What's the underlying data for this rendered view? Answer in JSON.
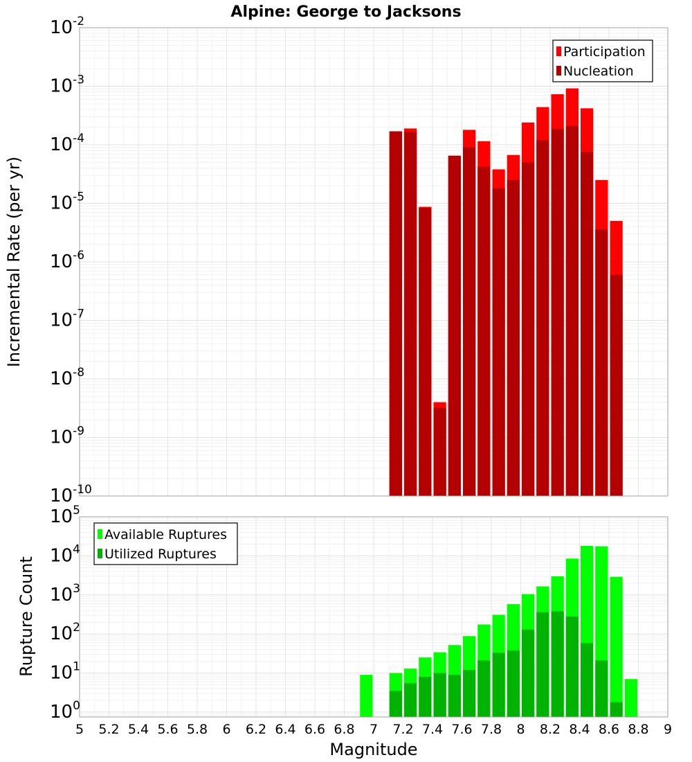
{
  "chart_data": [
    {
      "type": "bar",
      "title": "Alpine: George to Jacksons",
      "xlabel": "",
      "ylabel": "Incremental Rate (per yr)",
      "y_scale": "log",
      "ylim": [
        1e-10,
        0.01
      ],
      "y_ticks": [
        {
          "base": "10",
          "exp": "-10"
        },
        {
          "base": "10",
          "exp": "-9"
        },
        {
          "base": "10",
          "exp": "-8"
        },
        {
          "base": "10",
          "exp": "-7"
        },
        {
          "base": "10",
          "exp": "-6"
        },
        {
          "base": "10",
          "exp": "-5"
        },
        {
          "base": "10",
          "exp": "-4"
        },
        {
          "base": "10",
          "exp": "-3"
        },
        {
          "base": "10",
          "exp": "-2"
        }
      ],
      "xlim": [
        5,
        9
      ],
      "grid": true,
      "legend_position": "top-right",
      "series": [
        {
          "name": "Participation",
          "color": "#ff0000",
          "x": [
            7.15,
            7.25,
            7.35,
            7.45,
            7.55,
            7.65,
            7.75,
            7.85,
            7.95,
            8.05,
            8.15,
            8.25,
            8.35,
            8.45,
            8.55,
            8.65
          ],
          "values": [
            0.00017,
            0.00019,
            8.7e-06,
            4e-09,
            6.5e-05,
            0.00018,
            0.000115,
            3.8e-05,
            6.7e-05,
            0.00024,
            0.00044,
            0.00073,
            0.00092,
            0.00042,
            2.5e-05,
            5e-06
          ]
        },
        {
          "name": "Nucleation",
          "color": "#b30000",
          "x": [
            7.15,
            7.25,
            7.35,
            7.45,
            7.55,
            7.65,
            7.75,
            7.85,
            7.95,
            8.05,
            8.15,
            8.25,
            8.35,
            8.45,
            8.55,
            8.65
          ],
          "values": [
            0.00017,
            0.000165,
            8.3e-06,
            3.2e-09,
            6.5e-05,
            9e-05,
            4.2e-05,
            1.8e-05,
            2.5e-05,
            5e-05,
            0.00012,
            0.000185,
            0.00021,
            7.6e-05,
            3.6e-06,
            6e-07
          ]
        }
      ]
    },
    {
      "type": "bar",
      "title": "",
      "xlabel": "Magnitude",
      "ylabel": "Rupture Count",
      "y_scale": "log",
      "ylim": [
        0.75,
        100000
      ],
      "y_ticks": [
        {
          "base": "10",
          "exp": "0"
        },
        {
          "base": "10",
          "exp": "1"
        },
        {
          "base": "10",
          "exp": "2"
        },
        {
          "base": "10",
          "exp": "3"
        },
        {
          "base": "10",
          "exp": "4"
        },
        {
          "base": "10",
          "exp": "5"
        }
      ],
      "xlim": [
        5,
        9
      ],
      "x_ticks": [
        "5",
        "5.2",
        "5.4",
        "5.6",
        "5.8",
        "6",
        "6.2",
        "6.4",
        "6.6",
        "6.8",
        "7",
        "7.2",
        "7.4",
        "7.6",
        "7.8",
        "8",
        "8.2",
        "8.4",
        "8.6",
        "8.8",
        "9"
      ],
      "grid": true,
      "legend_position": "top-left",
      "series": [
        {
          "name": "Available Ruptures",
          "color": "#00ff00",
          "x": [
            6.95,
            7.15,
            7.25,
            7.35,
            7.45,
            7.55,
            7.65,
            7.75,
            7.85,
            7.95,
            8.05,
            8.15,
            8.25,
            8.35,
            8.45,
            8.55,
            8.65,
            8.75
          ],
          "values": [
            9,
            10,
            13,
            25,
            34,
            52,
            88,
            175,
            310,
            580,
            1050,
            1650,
            3000,
            8500,
            18000,
            17500,
            2900,
            7
          ]
        },
        {
          "name": "Utilized Ruptures",
          "color": "#00b300",
          "x": [
            7.15,
            7.25,
            7.35,
            7.45,
            7.55,
            7.65,
            7.75,
            7.85,
            7.95,
            8.05,
            8.15,
            8.25,
            8.35,
            8.45,
            8.55,
            8.65
          ],
          "values": [
            3.5,
            5.5,
            8,
            10,
            9,
            12,
            21,
            33,
            38,
            130,
            360,
            380,
            280,
            58,
            21,
            1.8
          ]
        }
      ]
    }
  ]
}
